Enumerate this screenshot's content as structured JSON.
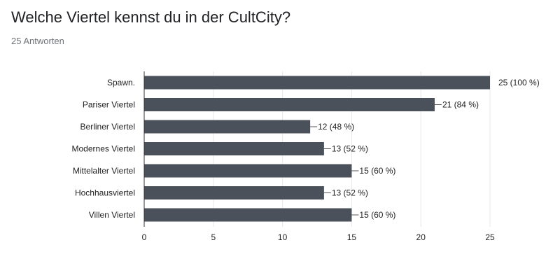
{
  "form": {
    "question": "Welche Viertel kennst du in der CultCity?",
    "response_count": "25 Antworten"
  },
  "colors": {
    "bar": "#4a515b",
    "axis": "#333333",
    "grid": "#e8e8e8"
  },
  "chart_data": {
    "type": "bar",
    "orientation": "horizontal",
    "title": "Welche Viertel kennst du in der CultCity?",
    "categories": [
      "Spawn.",
      "Pariser Viertel",
      "Berliner Viertel",
      "Modernes Viertel",
      "Mittelalter Viertel",
      "Hochhausviertel",
      "Villen Viertel"
    ],
    "values": [
      25,
      21,
      12,
      13,
      15,
      13,
      15
    ],
    "data_labels": [
      "25 (100 %)",
      "21 (84 %)",
      "12 (48 %)",
      "13 (52 %)",
      "15 (60 %)",
      "13 (52 %)",
      "15 (60 %)"
    ],
    "xlim": [
      0,
      25
    ],
    "xticks": [
      0,
      5,
      10,
      15,
      20,
      25
    ],
    "grid": true,
    "legend": "none"
  }
}
